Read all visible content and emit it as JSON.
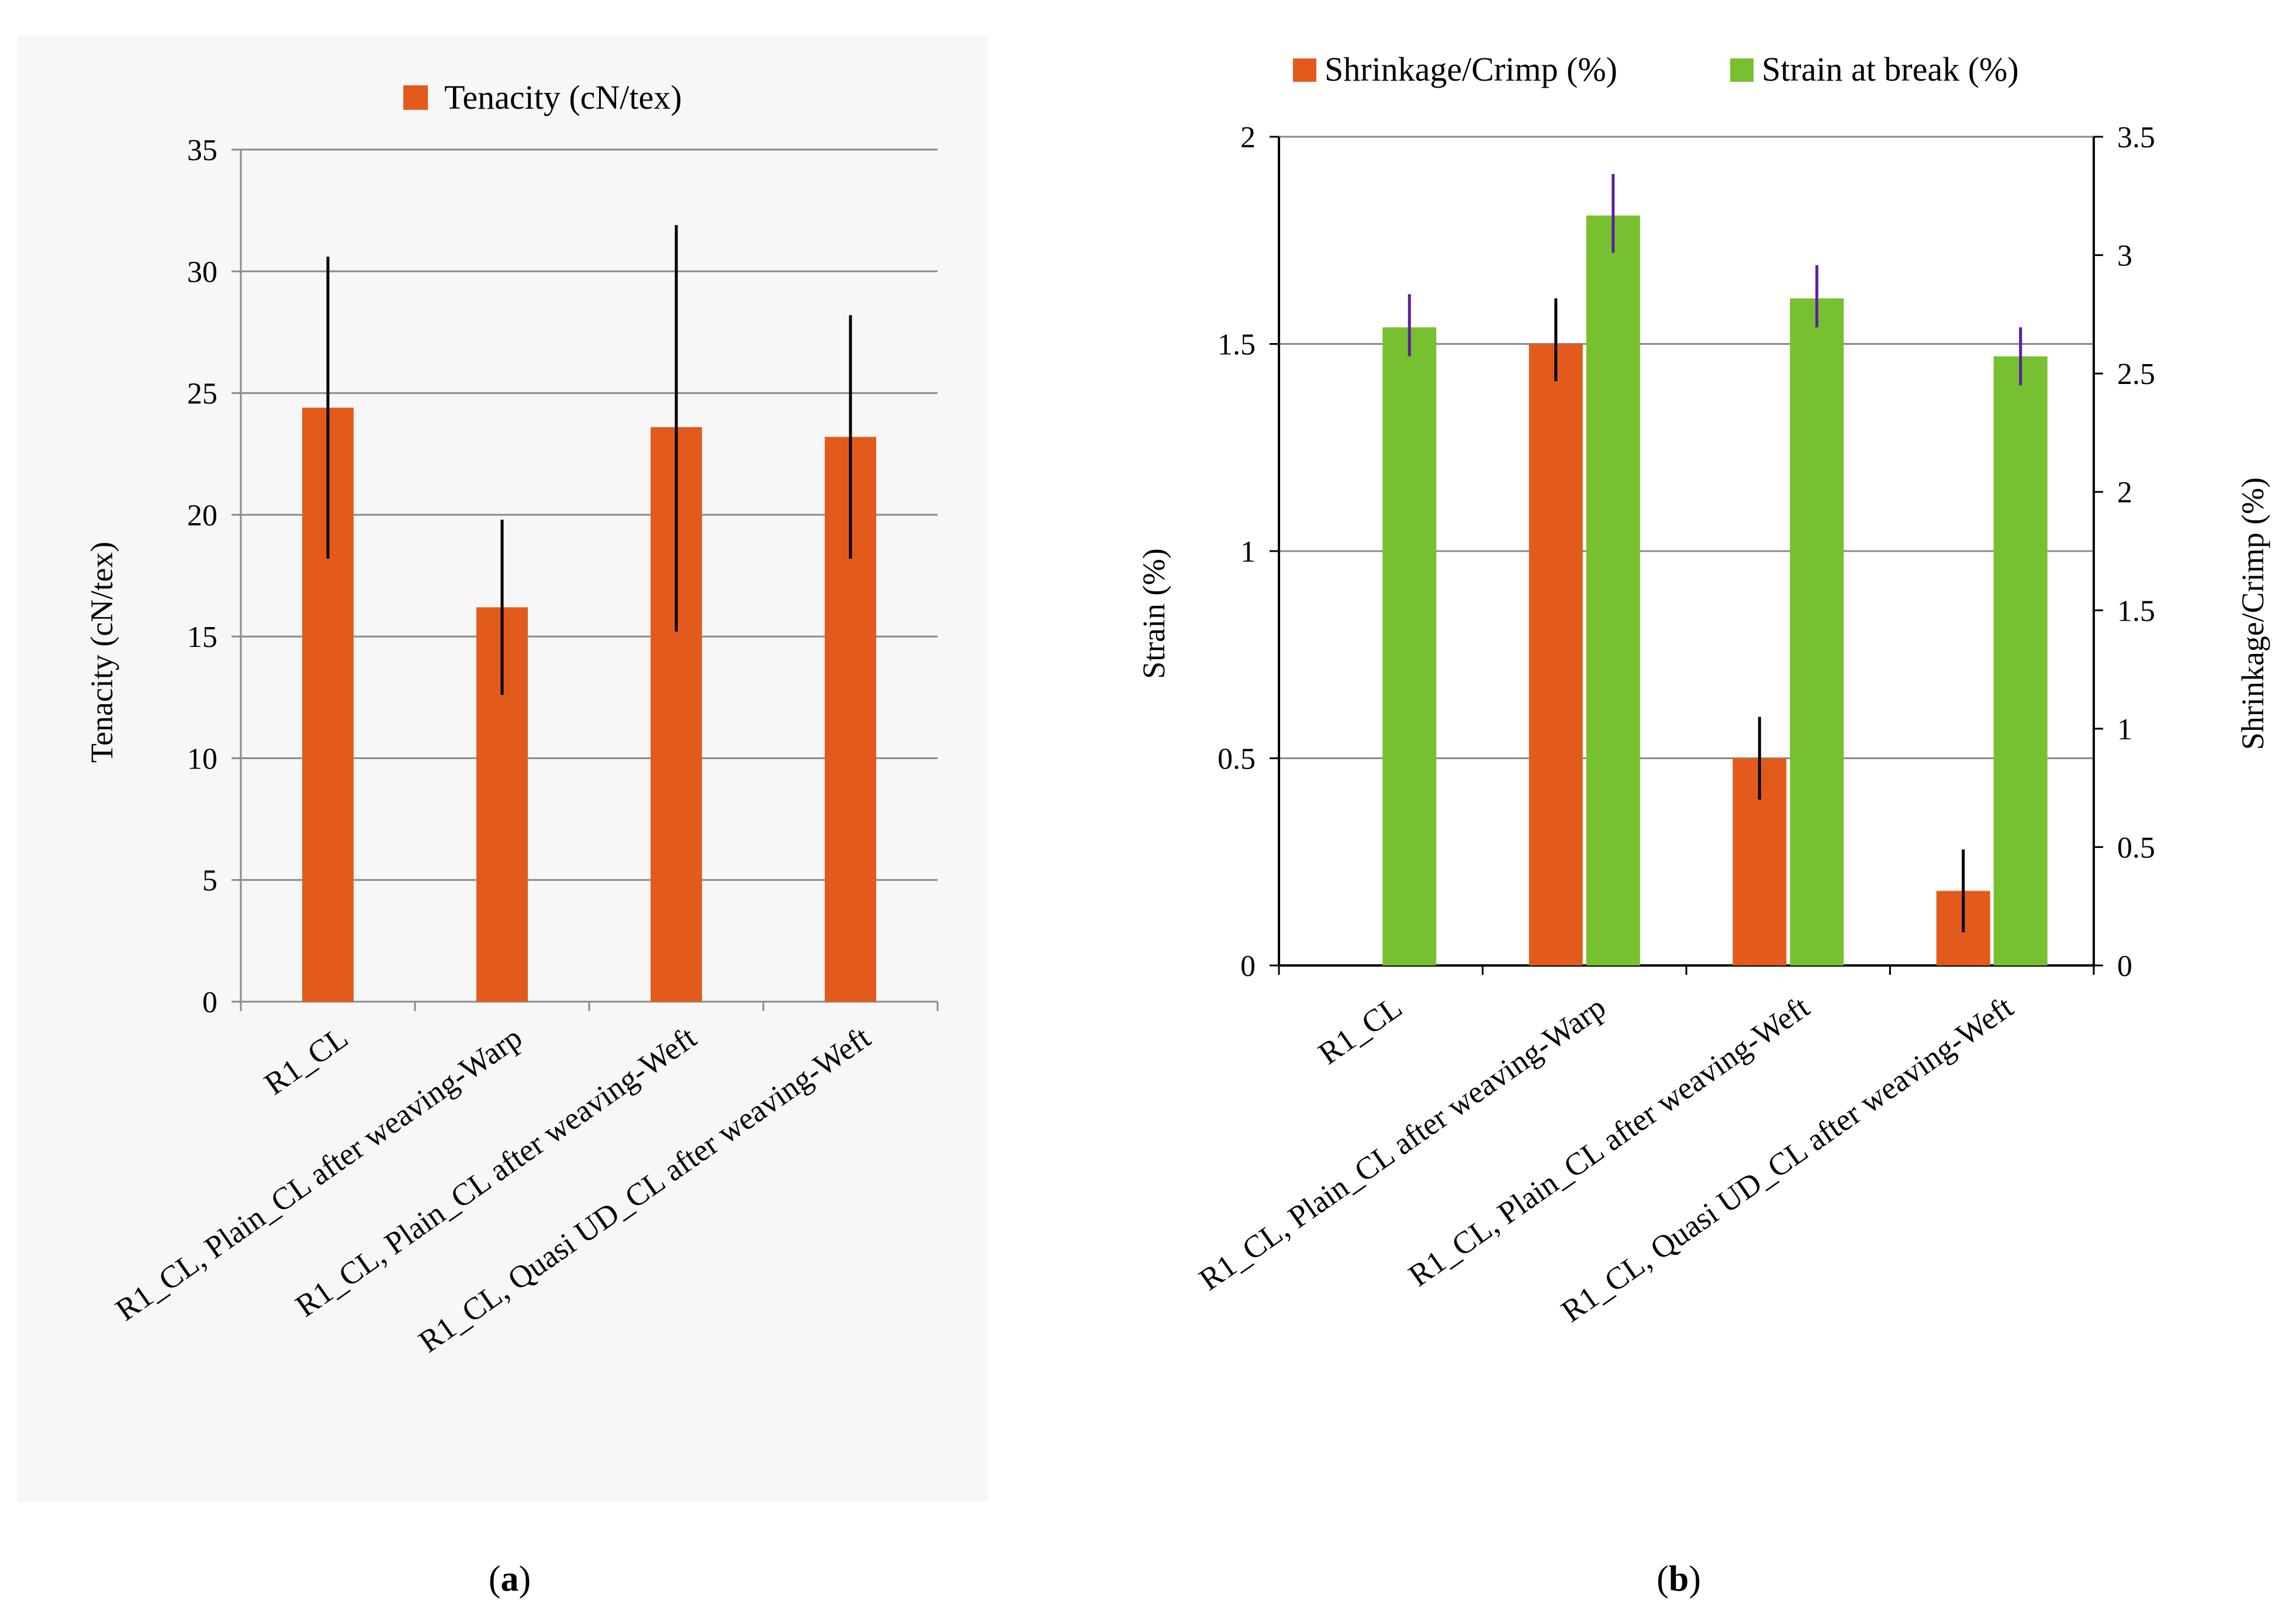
{
  "colors": {
    "orange": "#e35b1c",
    "green": "#77c02f",
    "err_a": "#000000",
    "err_b_green": "#5a1fa0",
    "err_b_orange": "#000000",
    "grid": "#8a8a8a"
  },
  "chart_data": [
    {
      "id": "a",
      "type": "bar",
      "caption_letter": "a",
      "legend": "Tenacity  (cN/tex)",
      "ylabel": "Tenacity (cN/tex)",
      "xlabel": "",
      "ylim": [
        0,
        35
      ],
      "yticks": [
        0,
        5,
        10,
        15,
        20,
        25,
        30,
        35
      ],
      "categories": [
        "R1_CL",
        "R1_CL, Plain_CL after weaving-Warp",
        "R1_CL, Plain_CL after weaving-Weft",
        "R1_CL, Quasi UD_CL after weaving-Weft"
      ],
      "series": [
        {
          "name": "Tenacity  (cN/tex)",
          "values": [
            24.4,
            16.2,
            23.6,
            23.2
          ],
          "err_low": [
            18.2,
            12.6,
            15.2,
            18.2
          ],
          "err_high": [
            30.6,
            19.8,
            31.9,
            28.2
          ]
        }
      ]
    },
    {
      "id": "b",
      "type": "bar",
      "caption_letter": "b",
      "ylabel_left": "Strain    (%)",
      "ylabel_right": "Shrinkage/Crimp (%)",
      "ylim_left": [
        0,
        2
      ],
      "yticks_left": [
        "0",
        "0.5",
        "1",
        "1.5",
        "2"
      ],
      "ylim_right": [
        0,
        3.5
      ],
      "yticks_right": [
        "0",
        "0.5",
        "1",
        "1.5",
        "2",
        "2.5",
        "3",
        "3.5"
      ],
      "categories": [
        "R1_CL",
        "R1_CL, Plain_CL after weaving-Warp",
        "R1_CL, Plain_CL after weaving-Weft",
        "R1_CL, Quasi UD_CL after weaving-Weft"
      ],
      "series": [
        {
          "name": "Shrinkage/Crimp  (%)",
          "axis": "left",
          "values": [
            null,
            1.5,
            0.5,
            0.18
          ],
          "err_low": [
            null,
            1.41,
            0.4,
            0.08
          ],
          "err_high": [
            null,
            1.61,
            0.6,
            0.28
          ]
        },
        {
          "name": "Strain  at break  (%)",
          "axis": "left",
          "values": [
            1.54,
            1.81,
            1.61,
            1.47
          ],
          "err_low": [
            1.47,
            1.72,
            1.54,
            1.4
          ],
          "err_high": [
            1.62,
            1.91,
            1.69,
            1.54
          ]
        }
      ]
    }
  ]
}
